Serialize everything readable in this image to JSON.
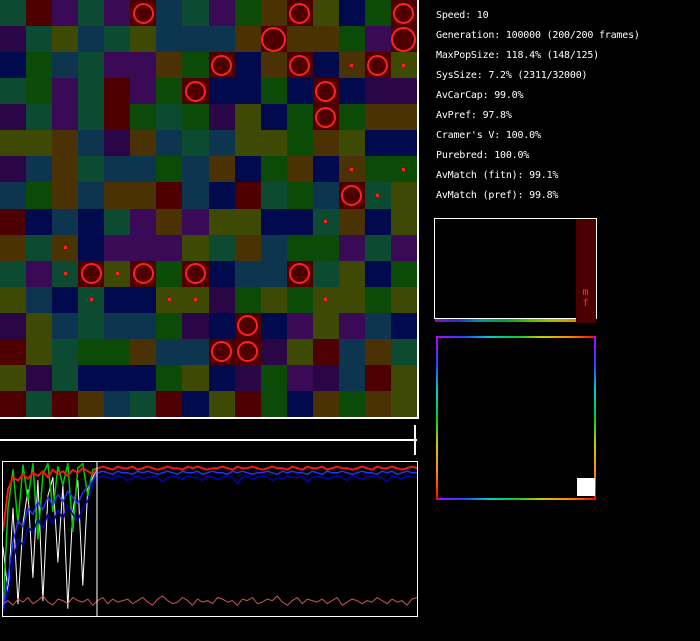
{
  "stats": {
    "lines": [
      "Speed: 10",
      "Generation: 100000 (200/200 frames)",
      "MaxPopSize: 118.4% (148/125)",
      "SysSize: 7.2% (2311/32000)",
      "AvCarCap: 99.0%",
      "AvPref: 97.8%",
      "Cramer's V: 100.0%",
      "Purebred: 100.0%",
      "AvMatch (fitn): 99.1%",
      "AvMatch (pref): 99.8%"
    ]
  },
  "world": {
    "palette": {
      "R": "#4e0000",
      "B": "#4a3204",
      "O": "#3e4a04",
      "G": "#0b4a07",
      "T": "#0c4a32",
      "C": "#0d3550",
      "N": "#020a4e",
      "P": "#3a0a56",
      "V": "#2a0646"
    },
    "rows": [
      "TRPTPRCTPGBRONGR",
      "VTOCTOCCCBRBBGPR",
      "NGCTPPBGRNBRNBRO",
      "TGPTRPGRNNGNRNVV",
      "VTPTRGTGVONGRGBB",
      "OOBCVBCTCOOGBONN",
      "VCBTCCGCBNGBNBGG",
      "CGBCBBRCNRTGCRTO",
      "RNCNTPBPOONNTBNO",
      "BTBNPPPOTBCGGPTP",
      "TPTRORGRNCCRTONG",
      "OCNTNNOOVGOGOOGO",
      "VOCTCCGVNRNPOPCN",
      "ROTGGBCCRRVORCBT",
      "OVTNNNGONVGPVCRO",
      "RTRBCTRNORGNBGBO"
    ],
    "circles": [
      [
        5,
        0
      ],
      [
        11,
        0
      ],
      [
        15,
        0
      ],
      [
        10,
        1
      ],
      [
        15,
        1
      ],
      [
        8,
        2
      ],
      [
        11,
        2
      ],
      [
        14,
        2
      ],
      [
        7,
        3
      ],
      [
        12,
        3
      ],
      [
        12,
        4
      ],
      [
        13,
        7
      ],
      [
        3,
        10
      ],
      [
        5,
        10
      ],
      [
        7,
        10
      ],
      [
        11,
        10
      ],
      [
        9,
        12
      ],
      [
        8,
        13
      ],
      [
        9,
        13
      ]
    ],
    "large_circles": [
      [
        10,
        1
      ],
      [
        15,
        1
      ]
    ],
    "dots": [
      [
        13,
        2
      ],
      [
        15,
        2
      ],
      [
        13,
        6
      ],
      [
        15,
        6
      ],
      [
        14,
        7
      ],
      [
        2,
        9
      ],
      [
        12,
        8
      ],
      [
        2,
        10
      ],
      [
        4,
        10
      ],
      [
        3,
        11
      ],
      [
        6,
        11
      ],
      [
        7,
        11
      ],
      [
        12,
        11
      ]
    ],
    "circle_color": "#ff2222"
  },
  "timeline": {
    "position_pct": 100
  },
  "histogram": {
    "bar_color": "#4a0000",
    "male_label": "m",
    "female_label": "f",
    "label_color": "#ff3333",
    "strip_colors": [
      "#8811bb",
      "#2233cc",
      "#009999",
      "#00a033",
      "#55bb00",
      "#aabb00",
      "#dd8800"
    ]
  },
  "gene_map": {
    "spectrum_colors": [
      "#bb00ff",
      "#2244ff",
      "#00cccc",
      "#00cc33",
      "#cccc00",
      "#ff8800",
      "#ff0000"
    ],
    "cluster_color": "#ffffff"
  },
  "chart_data": {
    "type": "line",
    "title": "",
    "xlabel": "",
    "ylabel": "",
    "x_range_frames": [
      0,
      200
    ],
    "y_range_pct": [
      0,
      100
    ],
    "grid": false,
    "legend": "none",
    "marker_x_pct": 22.7,
    "series": [
      {
        "name": "white",
        "color": "#ffffff",
        "width": 1,
        "values": [
          45,
          15,
          70,
          8,
          60,
          82,
          25,
          88,
          10,
          78,
          90,
          35,
          85,
          5,
          68,
          88,
          20,
          83,
          90,
          96,
          97,
          96,
          95,
          97,
          96,
          96,
          97,
          95,
          96,
          97,
          96,
          95,
          96,
          97,
          96,
          96,
          95,
          97,
          96,
          97,
          96,
          95,
          96,
          96,
          97,
          96,
          95,
          97,
          96,
          96,
          97,
          96,
          95,
          96,
          97,
          96,
          96,
          95,
          97,
          96,
          95,
          97,
          96,
          96,
          97,
          95,
          96,
          97,
          96,
          96,
          95,
          96,
          97,
          96,
          95,
          97,
          96,
          96,
          97,
          96,
          95,
          96,
          97,
          96
        ]
      },
      {
        "name": "green",
        "color": "#00cc00",
        "width": 1.5,
        "values": [
          5,
          70,
          95,
          60,
          98,
          75,
          99,
          50,
          92,
          99,
          68,
          97,
          85,
          99,
          55,
          96,
          99,
          78,
          95,
          96,
          97,
          96,
          95,
          97,
          96,
          96,
          97,
          95,
          96,
          97,
          96,
          95,
          96,
          97,
          96,
          96,
          95,
          97,
          96,
          97,
          96,
          95,
          96,
          96,
          97,
          96,
          95,
          97,
          96,
          96,
          97,
          96,
          95,
          96,
          97,
          96,
          96,
          95,
          97,
          96,
          95,
          97,
          96,
          96,
          97,
          95,
          96,
          97,
          96,
          96,
          95,
          96,
          97,
          96,
          95,
          97,
          96,
          96,
          97,
          96,
          95,
          96,
          97,
          96
        ]
      },
      {
        "name": "blue-dark",
        "color": "#0000bb",
        "width": 1.5,
        "values": [
          2,
          15,
          35,
          50,
          46,
          58,
          54,
          63,
          57,
          66,
          60,
          69,
          63,
          72,
          66,
          62,
          70,
          75,
          85,
          90,
          91,
          90,
          89,
          91,
          90,
          88,
          90,
          91,
          89,
          90,
          91,
          90,
          87,
          90,
          91,
          90,
          89,
          91,
          90,
          90,
          88,
          91,
          90,
          89,
          90,
          91,
          90,
          86,
          90,
          91,
          89,
          90,
          91,
          90,
          88,
          90,
          89,
          91,
          90,
          90,
          91,
          87,
          90,
          91,
          90,
          89,
          90,
          91,
          90,
          88,
          91,
          90,
          89,
          90,
          91,
          90,
          90,
          87,
          91,
          90,
          89,
          91,
          90,
          90
        ]
      },
      {
        "name": "blue",
        "color": "#2233ff",
        "width": 1.5,
        "values": [
          4,
          25,
          48,
          62,
          58,
          70,
          66,
          74,
          69,
          77,
          72,
          79,
          74,
          81,
          77,
          73,
          80,
          84,
          88,
          93,
          94,
          93,
          92,
          94,
          93,
          93,
          92,
          94,
          93,
          94,
          93,
          92,
          93,
          94,
          93,
          92,
          94,
          93,
          93,
          94,
          92,
          93,
          94,
          93,
          93,
          92,
          94,
          93,
          94,
          93,
          92,
          93,
          93,
          94,
          93,
          92,
          94,
          93,
          94,
          93,
          93,
          92,
          94,
          93,
          92,
          94,
          93,
          93,
          94,
          93,
          92,
          93,
          94,
          93,
          93,
          92,
          94,
          93,
          94,
          92,
          93,
          94,
          93,
          93
        ]
      },
      {
        "name": "red",
        "color": "#ff1111",
        "width": 2,
        "values": [
          55,
          82,
          90,
          88,
          92,
          89,
          93,
          91,
          94,
          90,
          95,
          92,
          94,
          91,
          95,
          93,
          96,
          94,
          92,
          96,
          97,
          96,
          95,
          97,
          96,
          96,
          97,
          95,
          96,
          97,
          96,
          95,
          96,
          97,
          96,
          96,
          95,
          97,
          96,
          97,
          96,
          95,
          96,
          96,
          97,
          96,
          95,
          97,
          96,
          96,
          97,
          96,
          95,
          96,
          97,
          96,
          96,
          95,
          97,
          96,
          95,
          97,
          96,
          96,
          97,
          95,
          96,
          97,
          96,
          96,
          95,
          96,
          97,
          96,
          95,
          97,
          96,
          96,
          97,
          96,
          95,
          96,
          97,
          96
        ]
      },
      {
        "name": "pink",
        "color": "#cc5555",
        "width": 1,
        "values": [
          8,
          10,
          7,
          11,
          9,
          12,
          8,
          10,
          13,
          9,
          7,
          11,
          10,
          8,
          12,
          10,
          9,
          11,
          7,
          10,
          12,
          8,
          11,
          9,
          10,
          11,
          8,
          10,
          12,
          9,
          7,
          11,
          13,
          10,
          8,
          9,
          12,
          10,
          7,
          11,
          9,
          10,
          8,
          12,
          11,
          9,
          10,
          7,
          11,
          10,
          12,
          8,
          9,
          11,
          10,
          13,
          9,
          7,
          10,
          12,
          8,
          11,
          10,
          9,
          11,
          8,
          10,
          12,
          7,
          9,
          11,
          10,
          8,
          10,
          9,
          12,
          10,
          8,
          11,
          9,
          10,
          7,
          11,
          12
        ]
      }
    ]
  }
}
